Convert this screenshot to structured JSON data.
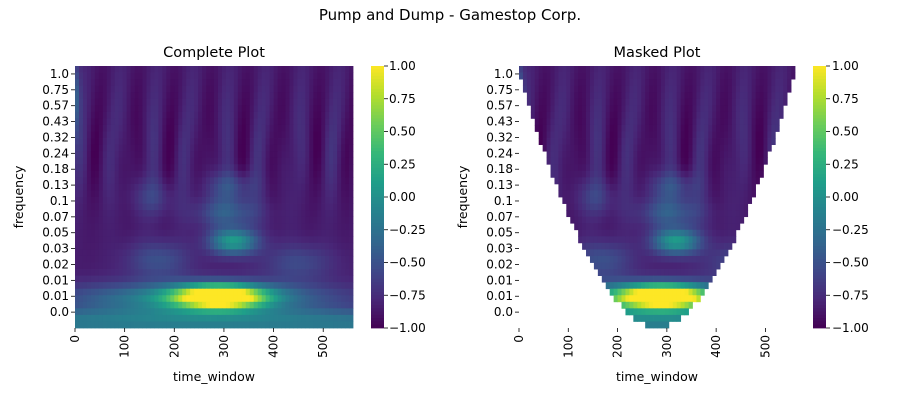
{
  "figure_title": "Pump and Dump - Gamestop Corp.",
  "chart_data": [
    {
      "type": "heatmap",
      "title": "Complete Plot",
      "xlabel": "time_window",
      "ylabel": "frequency",
      "xlim": [
        0,
        560
      ],
      "xticks": [
        0,
        100,
        200,
        300,
        400,
        500
      ],
      "yticks": [
        "1.0",
        "0.75",
        "0.57",
        "0.43",
        "0.32",
        "0.24",
        "0.18",
        "0.13",
        "0.1",
        "0.07",
        "0.05",
        "0.03",
        "0.02",
        "0.01",
        "0.01",
        "0.0"
      ],
      "colorbar": {
        "range": [
          -1.0,
          1.0
        ],
        "ticks": [
          "1.00",
          "0.75",
          "0.50",
          "0.25",
          "0.00",
          "−0.25",
          "−0.50",
          "−0.75",
          "−1.00"
        ]
      },
      "colormap": "viridis",
      "masked": false,
      "hotspot": {
        "time_window": 290,
        "frequency": 0.01,
        "value": 1.0
      },
      "secondary_hotspot": {
        "time_window": 320,
        "frequency": 0.03,
        "value": 0.1
      }
    },
    {
      "type": "heatmap",
      "title": "Masked Plot",
      "xlabel": "time_window",
      "ylabel": "frequency",
      "xlim": [
        0,
        560
      ],
      "xticks": [
        0,
        100,
        200,
        300,
        400,
        500
      ],
      "yticks": [
        "1.0",
        "0.75",
        "0.57",
        "0.43",
        "0.32",
        "0.24",
        "0.18",
        "0.13",
        "0.1",
        "0.07",
        "0.05",
        "0.03",
        "0.02",
        "0.01",
        "0.01",
        "0.0"
      ],
      "colorbar": {
        "range": [
          -1.0,
          1.0
        ],
        "ticks": [
          "1.00",
          "0.75",
          "0.50",
          "0.25",
          "0.00",
          "−0.25",
          "−0.50",
          "−0.75",
          "−1.00"
        ]
      },
      "colormap": "viridis",
      "masked": true,
      "hotspot": {
        "time_window": 290,
        "frequency": 0.01,
        "value": 1.0
      },
      "secondary_hotspot": {
        "time_window": 320,
        "frequency": 0.03,
        "value": 0.1
      }
    }
  ]
}
